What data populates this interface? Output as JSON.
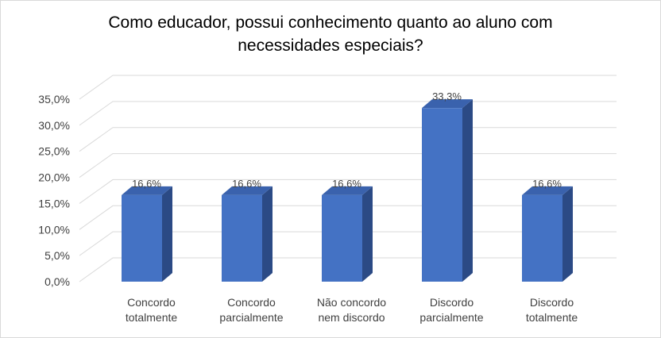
{
  "chart_data": {
    "type": "bar",
    "title_lines": [
      "Como educador, possui conhecimento quanto ao aluno com",
      "necessidades especiais?"
    ],
    "categories": [
      [
        "Concordo",
        "totalmente"
      ],
      [
        "Concordo",
        "parcialmente"
      ],
      [
        "Não concordo",
        "nem discordo"
      ],
      [
        "Discordo",
        "parcialmente"
      ],
      [
        "Discordo",
        "totalmente"
      ]
    ],
    "values": [
      16.6,
      16.6,
      16.6,
      33.3,
      16.6
    ],
    "data_labels": [
      "16,6%",
      "16,6%",
      "16,6%",
      "33,3%",
      "16,6%"
    ],
    "y_ticks": [
      0,
      5,
      10,
      15,
      20,
      25,
      30,
      35
    ],
    "y_tick_labels": [
      "0,0%",
      "5,0%",
      "10,0%",
      "15,0%",
      "20,0%",
      "25,0%",
      "30,0%",
      "35,0%"
    ],
    "ylim": [
      0,
      35
    ],
    "grid": true,
    "style": "3d-column",
    "colors": {
      "front": "#4472c4",
      "side": "#2b4a85",
      "top": "#3a62ad",
      "grid": "#d9d9d9"
    }
  }
}
